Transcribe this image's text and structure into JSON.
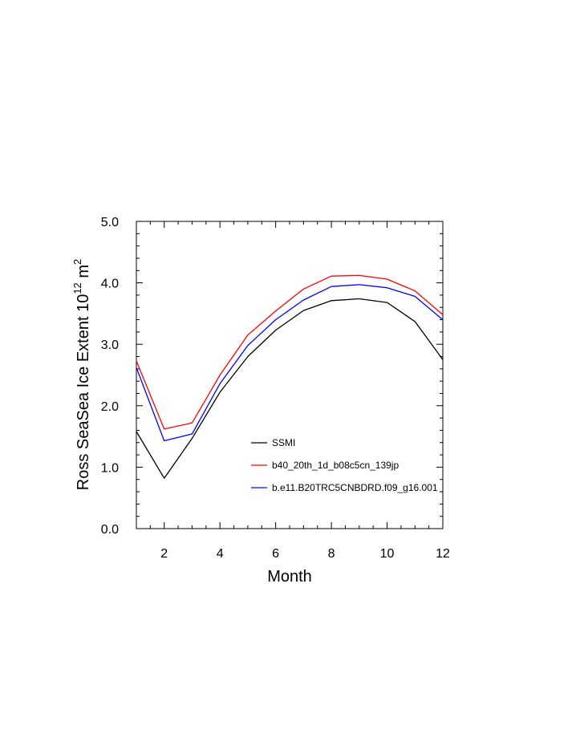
{
  "chart_data": {
    "type": "line",
    "x": [
      1,
      2,
      3,
      4,
      5,
      6,
      7,
      8,
      9,
      10,
      11,
      12
    ],
    "series": [
      {
        "name": "SSMI",
        "color": "#000000",
        "values": [
          1.58,
          0.82,
          1.47,
          2.22,
          2.8,
          3.23,
          3.55,
          3.71,
          3.74,
          3.68,
          3.37,
          2.75
        ]
      },
      {
        "name": "b40_20th_1d_b08c5cn_139jp",
        "color": "#ff0000",
        "values": [
          2.73,
          1.62,
          1.72,
          2.5,
          3.15,
          3.54,
          3.9,
          4.11,
          4.12,
          4.06,
          3.87,
          3.48
        ]
      },
      {
        "name": "b.e11.B20TRC5CNBDRD.f09_g16.001",
        "color": "#0000ff",
        "values": [
          2.62,
          1.43,
          1.54,
          2.36,
          2.98,
          3.4,
          3.72,
          3.94,
          3.97,
          3.92,
          3.78,
          3.4
        ]
      }
    ],
    "xlabel": "Month",
    "ylabel_main": "Ross SeaSea Ice Extent 10",
    "ylabel_exp": "12",
    "ylabel_unit": " m",
    "ylabel_unit_exp": "2",
    "xlim": [
      1,
      12
    ],
    "ylim": [
      0,
      5
    ],
    "x_ticks": [
      2,
      4,
      6,
      8,
      10,
      12
    ],
    "x_tick_labels": [
      "2",
      "4",
      "6",
      "8",
      "10",
      "12"
    ],
    "y_ticks": [
      0,
      1,
      2,
      3,
      4,
      5
    ],
    "y_tick_labels": [
      "0.0",
      "1.0",
      "2.0",
      "3.0",
      "4.0",
      "5.0"
    ],
    "grid": false,
    "legend_position": "bottom-right"
  }
}
